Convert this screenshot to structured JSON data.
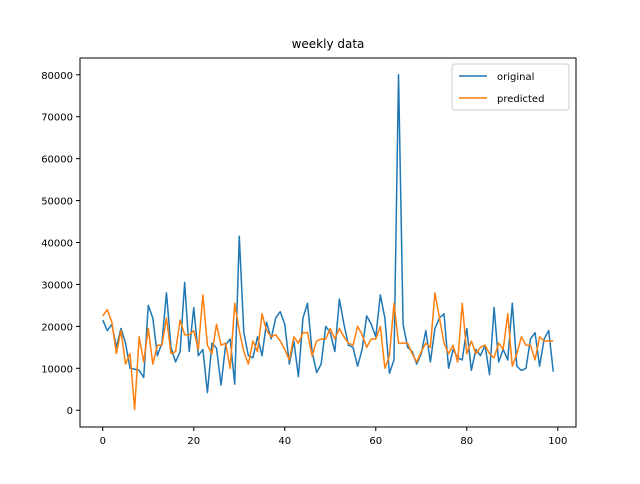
{
  "chart_data": {
    "type": "line",
    "title": "weekly data",
    "xlabel": "",
    "ylabel": "",
    "xlim": [
      -5,
      104
    ],
    "ylim": [
      -4000,
      84000
    ],
    "x_ticks": [
      0,
      20,
      40,
      60,
      80,
      100
    ],
    "y_ticks": [
      0,
      10000,
      20000,
      30000,
      40000,
      50000,
      60000,
      70000,
      80000
    ],
    "grid": false,
    "legend_position": "upper right",
    "series": [
      {
        "name": "original",
        "color": "#1f77b4",
        "values": [
          21500,
          19000,
          20500,
          15000,
          19500,
          16000,
          10000,
          9800,
          9500,
          7800,
          25000,
          22000,
          13000,
          16000,
          28000,
          15000,
          11500,
          14000,
          30500,
          14000,
          24500,
          13000,
          14500,
          4200,
          16000,
          14800,
          6000,
          15500,
          17000,
          6200,
          41500,
          18500,
          13000,
          12500,
          17500,
          13000,
          21000,
          17000,
          22000,
          23500,
          20500,
          11000,
          16500,
          8000,
          22000,
          25500,
          14000,
          9000,
          11000,
          20000,
          18500,
          14000,
          26500,
          20500,
          15500,
          15000,
          10500,
          14500,
          22500,
          20500,
          17500,
          27500,
          22000,
          8800,
          12000,
          80000,
          20500,
          15000,
          14000,
          11000,
          13500,
          19000,
          11500,
          19500,
          22000,
          23000,
          10000,
          14500,
          12500,
          12000,
          19500,
          9500,
          14500,
          13000,
          15500,
          8500,
          24500,
          11500,
          14500,
          12000,
          25500,
          10500,
          9500,
          10000,
          17000,
          18500,
          10500,
          17000,
          19000,
          9200
        ]
      },
      {
        "name": "predicted",
        "color": "#ff7f0e",
        "values": [
          22500,
          24000,
          21000,
          13500,
          19000,
          11000,
          13500,
          200,
          17500,
          11500,
          19500,
          11000,
          15500,
          15500,
          22000,
          13500,
          14000,
          21500,
          18000,
          18000,
          19000,
          14500,
          27500,
          15500,
          13500,
          20500,
          15500,
          16000,
          10000,
          25500,
          19000,
          14000,
          11000,
          16500,
          14000,
          23000,
          19000,
          17500,
          18000,
          16500,
          14500,
          12000,
          17500,
          16000,
          18500,
          18500,
          13000,
          16500,
          17000,
          17000,
          19500,
          17000,
          19500,
          17500,
          16000,
          15500,
          20000,
          18000,
          15000,
          17000,
          17000,
          20000,
          10000,
          13000,
          25500,
          16000,
          16000,
          16000,
          13500,
          11500,
          14000,
          16000,
          15000,
          28000,
          22000,
          16000,
          13500,
          15500,
          11500,
          25500,
          13500,
          16500,
          13500,
          15000,
          15500,
          13500,
          12500,
          16000,
          14500,
          23000,
          10500,
          13500,
          17500,
          15500,
          15500,
          12000,
          17500,
          16500,
          16500,
          16500
        ]
      }
    ]
  }
}
